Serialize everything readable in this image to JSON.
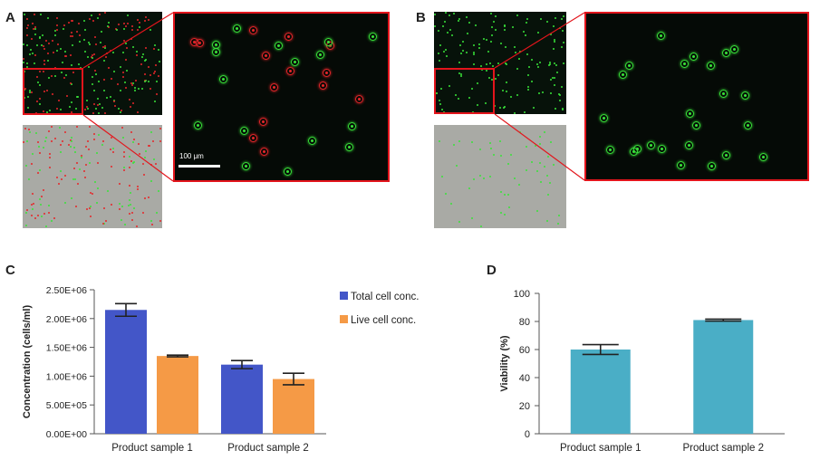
{
  "panels": {
    "a": "A",
    "b": "B",
    "c": "C",
    "d": "D"
  },
  "scale_bar": {
    "label": "100 μm"
  },
  "colors": {
    "total": "#4356c8",
    "live": "#f59a46",
    "viability": "#4aaec6",
    "zoom_border": "#e3151c",
    "live_cell": "#39e339",
    "dead_cell": "#e6262a"
  },
  "chart_data": [
    {
      "type": "bar",
      "panel": "C",
      "categories": [
        "Product sample 1",
        "Product sample 2"
      ],
      "series": [
        {
          "name": "Total cell conc.",
          "values": [
            2150000,
            1200000
          ],
          "errors": [
            110000,
            70000
          ]
        },
        {
          "name": "Live cell conc.",
          "values": [
            1350000,
            950000
          ],
          "errors": [
            15000,
            100000
          ]
        }
      ],
      "ylabel": "Concentration (cells/ml)",
      "ylim": [
        0,
        2500000
      ],
      "yticks": [
        "0.00E+00",
        "5.00E+05",
        "1.00E+06",
        "1.50E+06",
        "2.00E+06",
        "2.50E+06"
      ],
      "legend": "top-right"
    },
    {
      "type": "bar",
      "panel": "D",
      "categories": [
        "Product sample 1",
        "Product sample 2"
      ],
      "values": [
        60,
        81
      ],
      "errors": [
        3.5,
        0.7
      ],
      "ylabel": "Viability (%)",
      "ylim": [
        0,
        100
      ],
      "yticks": [
        "0",
        "20",
        "40",
        "60",
        "80",
        "100"
      ]
    }
  ]
}
